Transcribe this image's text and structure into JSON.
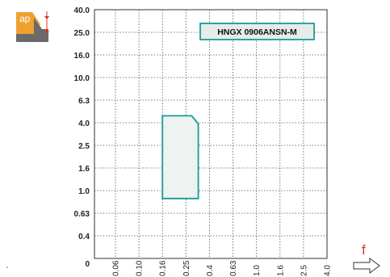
{
  "chart_data": {
    "type": "area",
    "title": "",
    "xlabel": "f",
    "ylabel": "ap",
    "x_ticks": [
      "0.06",
      "0.10",
      "0.16",
      "0.25",
      "0.4",
      "0.63",
      "1.0",
      "1.6",
      "2.5",
      "4.0"
    ],
    "y_ticks": [
      "0",
      "0.4",
      "0.63",
      "1.0",
      "1.6",
      "2.5",
      "4.0",
      "6.3",
      "10.0",
      "16.0",
      "25.0",
      "40.0"
    ],
    "grid": true,
    "series": [
      {
        "name": "HNGX 0906ANSN-M",
        "polygon": [
          {
            "f": 0.16,
            "ap": 0.85
          },
          {
            "f": 0.16,
            "ap": 4.6
          },
          {
            "f": 0.28,
            "ap": 4.6
          },
          {
            "f": 0.32,
            "ap": 3.9
          },
          {
            "f": 0.32,
            "ap": 0.85
          }
        ]
      }
    ],
    "legend": "top-right",
    "colors": {
      "region_stroke": "#1a9a9a",
      "region_fill": "#eef2f0",
      "axis_arrow": "#e0301e",
      "ap_icon": "#f0a030"
    }
  }
}
